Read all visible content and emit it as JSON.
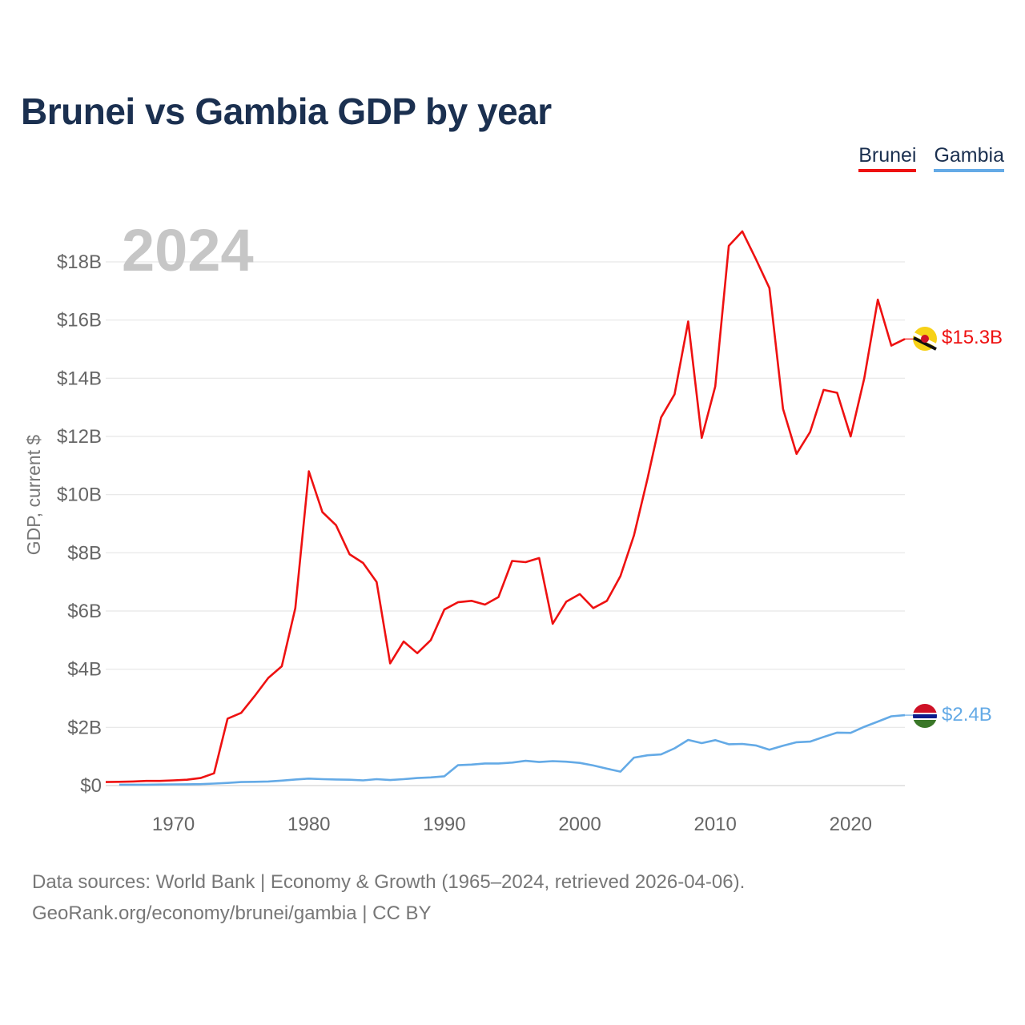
{
  "title": "Brunei vs Gambia GDP by year",
  "legend": {
    "items": [
      "Brunei",
      "Gambia"
    ]
  },
  "year_label": "2024",
  "footer": {
    "line1": "Data sources: World Bank | Economy & Growth (1965–2024, retrieved 2026-04-06).",
    "line2": "GeoRank.org/economy/brunei/gambia | CC BY"
  },
  "colors": {
    "brunei": "#ee1111",
    "gambia": "#64aae6",
    "title": "#1b3050",
    "grid": "#e6e6e6"
  },
  "chart_data": {
    "type": "line",
    "title": "Brunei vs Gambia GDP by year",
    "ylabel": "GDP, current $",
    "xlabel": "",
    "xlim": [
      1965,
      2024
    ],
    "ylim": [
      0,
      19500000000
    ],
    "xticks": [
      1970,
      1980,
      1990,
      2000,
      2010,
      2020
    ],
    "xtick_labels": [
      "1970",
      "1980",
      "1990",
      "2000",
      "2010",
      "2020"
    ],
    "yticks": [
      0,
      2000000000,
      4000000000,
      6000000000,
      8000000000,
      10000000000,
      12000000000,
      14000000000,
      16000000000,
      18000000000
    ],
    "ytick_labels": [
      "$0",
      "$2B",
      "$4B",
      "$6B",
      "$8B",
      "$10B",
      "$12B",
      "$14B",
      "$16B",
      "$18B"
    ],
    "grid": true,
    "series": [
      {
        "name": "Brunei",
        "end_label": "$15.3B",
        "points": [
          [
            1965,
            120000000.0
          ],
          [
            1966,
            130000000.0
          ],
          [
            1967,
            140000000.0
          ],
          [
            1968,
            160000000.0
          ],
          [
            1969,
            160000000.0
          ],
          [
            1970,
            180000000.0
          ],
          [
            1971,
            200000000.0
          ],
          [
            1972,
            260000000.0
          ],
          [
            1973,
            420000000.0
          ],
          [
            1974,
            2300000000.0
          ],
          [
            1975,
            2500000000.0
          ],
          [
            1976,
            3080000000.0
          ],
          [
            1977,
            3700000000.0
          ],
          [
            1978,
            4100000000.0
          ],
          [
            1979,
            6100000000.0
          ],
          [
            1980,
            10800000000.0
          ],
          [
            1981,
            9400000000.0
          ],
          [
            1982,
            8950000000.0
          ],
          [
            1983,
            7950000000.0
          ],
          [
            1984,
            7650000000.0
          ],
          [
            1985,
            7000000000.0
          ],
          [
            1986,
            4200000000.0
          ],
          [
            1987,
            4950000000.0
          ],
          [
            1988,
            4550000000.0
          ],
          [
            1989,
            5000000000.0
          ],
          [
            1990,
            6050000000.0
          ],
          [
            1991,
            6300000000.0
          ],
          [
            1992,
            6350000000.0
          ],
          [
            1993,
            6220000000.0
          ],
          [
            1994,
            6480000000.0
          ],
          [
            1995,
            7720000000.0
          ],
          [
            1996,
            7680000000.0
          ],
          [
            1997,
            7820000000.0
          ],
          [
            1998,
            5560000000.0
          ],
          [
            1999,
            6320000000.0
          ],
          [
            2000,
            6580000000.0
          ],
          [
            2001,
            6100000000.0
          ],
          [
            2002,
            6350000000.0
          ],
          [
            2003,
            7200000000.0
          ],
          [
            2004,
            8600000000.0
          ],
          [
            2005,
            10550000000.0
          ],
          [
            2006,
            12650000000.0
          ],
          [
            2007,
            13450000000.0
          ],
          [
            2008,
            15950000000.0
          ],
          [
            2009,
            11950000000.0
          ],
          [
            2010,
            13720000000.0
          ],
          [
            2011,
            18550000000.0
          ],
          [
            2012,
            19050000000.0
          ],
          [
            2013,
            18100000000.0
          ],
          [
            2014,
            17100000000.0
          ],
          [
            2015,
            12950000000.0
          ],
          [
            2016,
            11400000000.0
          ],
          [
            2017,
            12150000000.0
          ],
          [
            2018,
            13600000000.0
          ],
          [
            2019,
            13500000000.0
          ],
          [
            2020,
            12000000000.0
          ],
          [
            2021,
            14000000000.0
          ],
          [
            2022,
            16700000000.0
          ],
          [
            2023,
            15120000000.0
          ],
          [
            2024,
            15350000000.0
          ]
        ]
      },
      {
        "name": "Gambia",
        "end_label": "$2.4B",
        "points": [
          [
            1966,
            30000000.0
          ],
          [
            1967,
            30000000.0
          ],
          [
            1968,
            30000000.0
          ],
          [
            1969,
            35000000.0
          ],
          [
            1970,
            40000000.0
          ],
          [
            1971,
            45000000.0
          ],
          [
            1972,
            50000000.0
          ],
          [
            1973,
            70000000.0
          ],
          [
            1974,
            90000000.0
          ],
          [
            1975,
            120000000.0
          ],
          [
            1976,
            130000000.0
          ],
          [
            1977,
            140000000.0
          ],
          [
            1978,
            170000000.0
          ],
          [
            1979,
            210000000.0
          ],
          [
            1980,
            240000000.0
          ],
          [
            1981,
            220000000.0
          ],
          [
            1982,
            210000000.0
          ],
          [
            1983,
            200000000.0
          ],
          [
            1984,
            180000000.0
          ],
          [
            1985,
            220000000.0
          ],
          [
            1986,
            190000000.0
          ],
          [
            1987,
            220000000.0
          ],
          [
            1988,
            260000000.0
          ],
          [
            1989,
            280000000.0
          ],
          [
            1990,
            320000000.0
          ],
          [
            1991,
            700000000.0
          ],
          [
            1992,
            720000000.0
          ],
          [
            1993,
            760000000.0
          ],
          [
            1994,
            760000000.0
          ],
          [
            1995,
            790000000.0
          ],
          [
            1996,
            850000000.0
          ],
          [
            1997,
            810000000.0
          ],
          [
            1998,
            840000000.0
          ],
          [
            1999,
            820000000.0
          ],
          [
            2000,
            780000000.0
          ],
          [
            2001,
            690000000.0
          ],
          [
            2002,
            580000000.0
          ],
          [
            2003,
            480000000.0
          ],
          [
            2004,
            960000000.0
          ],
          [
            2005,
            1040000000.0
          ],
          [
            2006,
            1070000000.0
          ],
          [
            2007,
            1280000000.0
          ],
          [
            2008,
            1570000000.0
          ],
          [
            2009,
            1460000000.0
          ],
          [
            2010,
            1560000000.0
          ],
          [
            2011,
            1420000000.0
          ],
          [
            2012,
            1430000000.0
          ],
          [
            2013,
            1380000000.0
          ],
          [
            2014,
            1230000000.0
          ],
          [
            2015,
            1370000000.0
          ],
          [
            2016,
            1490000000.0
          ],
          [
            2017,
            1510000000.0
          ],
          [
            2018,
            1670000000.0
          ],
          [
            2019,
            1820000000.0
          ],
          [
            2020,
            1810000000.0
          ],
          [
            2021,
            2020000000.0
          ],
          [
            2022,
            2200000000.0
          ],
          [
            2023,
            2380000000.0
          ],
          [
            2024,
            2420000000.0
          ]
        ]
      }
    ]
  }
}
